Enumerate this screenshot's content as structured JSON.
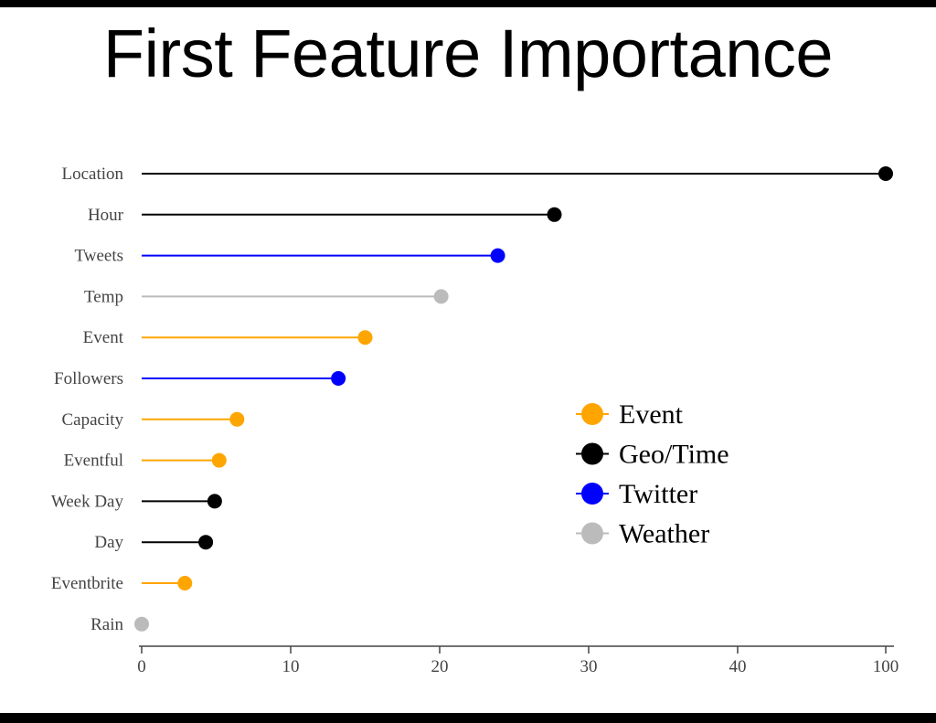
{
  "chart_data": {
    "type": "lollipop",
    "title": "First Feature Importance",
    "categories": [
      "Location",
      "Hour",
      "Tweets",
      "Temp",
      "Event",
      "Followers",
      "Capacity",
      "Eventful",
      "Week Day",
      "Day",
      "Eventbrite",
      "Rain"
    ],
    "values": [
      100,
      27.7,
      23.9,
      20.1,
      15.0,
      13.2,
      6.4,
      5.2,
      4.9,
      4.3,
      2.9,
      0.0
    ],
    "groups": [
      "Geo/Time",
      "Geo/Time",
      "Twitter",
      "Weather",
      "Event",
      "Twitter",
      "Event",
      "Event",
      "Geo/Time",
      "Geo/Time",
      "Event",
      "Weather"
    ],
    "x_ticks": [
      "0",
      "10",
      "20",
      "30",
      "40",
      "100"
    ],
    "x_tick_values": [
      0,
      10,
      20,
      30,
      40,
      100
    ],
    "legend": [
      {
        "name": "Event",
        "color": "#FFA500"
      },
      {
        "name": "Geo/Time",
        "color": "#000000"
      },
      {
        "name": "Twitter",
        "color": "#0000FF"
      },
      {
        "name": "Weather",
        "color": "#BBBBBB"
      }
    ],
    "axis_break": "between 40 and 100",
    "legend_position": "right"
  }
}
